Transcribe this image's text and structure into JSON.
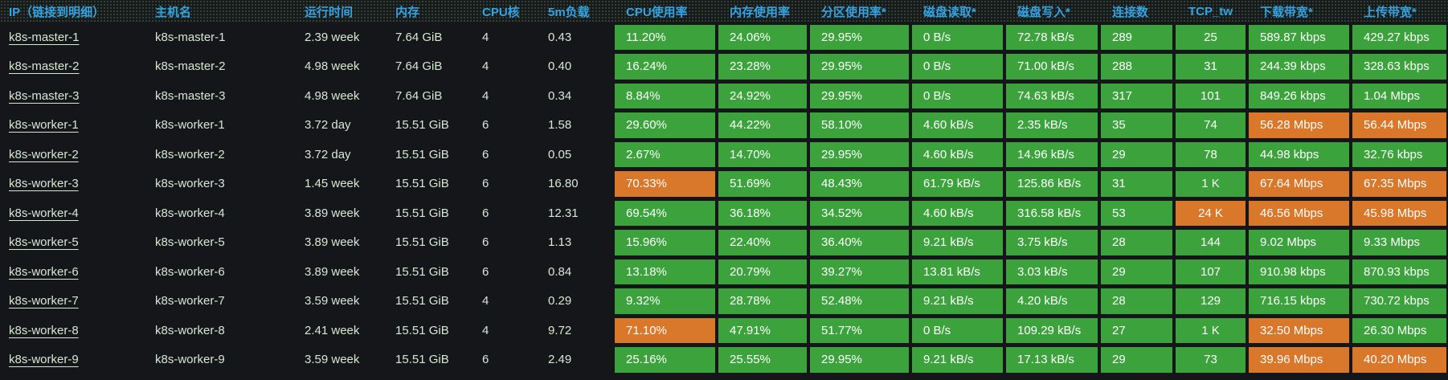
{
  "colors": {
    "green": "#3ca33c",
    "orange": "#d9772a",
    "header_text": "#35a2e2",
    "body_text": "#d7e8d4"
  },
  "table": {
    "columns": [
      {
        "key": "ip",
        "label": "IP（链接到明细）"
      },
      {
        "key": "hostname",
        "label": "主机名"
      },
      {
        "key": "uptime",
        "label": "运行时间"
      },
      {
        "key": "memory",
        "label": "内存"
      },
      {
        "key": "cpu_cores",
        "label": "CPU核"
      },
      {
        "key": "load_5m",
        "label": "5m负载"
      },
      {
        "key": "cpu_usage",
        "label": "CPU使用率"
      },
      {
        "key": "mem_usage",
        "label": "内存使用率"
      },
      {
        "key": "partition_usage",
        "label": "分区使用率*"
      },
      {
        "key": "disk_read",
        "label": "磁盘读取*"
      },
      {
        "key": "disk_write",
        "label": "磁盘写入*"
      },
      {
        "key": "connections",
        "label": "连接数"
      },
      {
        "key": "tcp_tw",
        "label": "TCP_tw"
      },
      {
        "key": "download_bw",
        "label": "下载带宽*"
      },
      {
        "key": "upload_bw",
        "label": "上传带宽*"
      }
    ],
    "rows": [
      {
        "ip": "k8s-master-1",
        "hostname": "k8s-master-1",
        "uptime": "2.39 week",
        "memory": "7.64 GiB",
        "cpu_cores": "4",
        "load_5m": "0.43",
        "cpu_usage": {
          "v": "11.20%",
          "level": "green"
        },
        "mem_usage": {
          "v": "24.06%",
          "level": "green"
        },
        "partition_usage": {
          "v": "29.95%",
          "level": "green"
        },
        "disk_read": {
          "v": "0 B/s",
          "level": "green"
        },
        "disk_write": {
          "v": "72.78 kB/s",
          "level": "green"
        },
        "connections": {
          "v": "289",
          "level": "green"
        },
        "tcp_tw": {
          "v": "25",
          "level": "green"
        },
        "download_bw": {
          "v": "589.87 kbps",
          "level": "green"
        },
        "upload_bw": {
          "v": "429.27 kbps",
          "level": "green"
        }
      },
      {
        "ip": "k8s-master-2",
        "hostname": "k8s-master-2",
        "uptime": "4.98 week",
        "memory": "7.64 GiB",
        "cpu_cores": "4",
        "load_5m": "0.40",
        "cpu_usage": {
          "v": "16.24%",
          "level": "green"
        },
        "mem_usage": {
          "v": "23.28%",
          "level": "green"
        },
        "partition_usage": {
          "v": "29.95%",
          "level": "green"
        },
        "disk_read": {
          "v": "0 B/s",
          "level": "green"
        },
        "disk_write": {
          "v": "71.00 kB/s",
          "level": "green"
        },
        "connections": {
          "v": "288",
          "level": "green"
        },
        "tcp_tw": {
          "v": "31",
          "level": "green"
        },
        "download_bw": {
          "v": "244.39 kbps",
          "level": "green"
        },
        "upload_bw": {
          "v": "328.63 kbps",
          "level": "green"
        }
      },
      {
        "ip": "k8s-master-3",
        "hostname": "k8s-master-3",
        "uptime": "4.98 week",
        "memory": "7.64 GiB",
        "cpu_cores": "4",
        "load_5m": "0.34",
        "cpu_usage": {
          "v": "8.84%",
          "level": "green"
        },
        "mem_usage": {
          "v": "24.92%",
          "level": "green"
        },
        "partition_usage": {
          "v": "29.95%",
          "level": "green"
        },
        "disk_read": {
          "v": "0 B/s",
          "level": "green"
        },
        "disk_write": {
          "v": "74.63 kB/s",
          "level": "green"
        },
        "connections": {
          "v": "317",
          "level": "green"
        },
        "tcp_tw": {
          "v": "101",
          "level": "green"
        },
        "download_bw": {
          "v": "849.26 kbps",
          "level": "green"
        },
        "upload_bw": {
          "v": "1.04 Mbps",
          "level": "green"
        }
      },
      {
        "ip": "k8s-worker-1",
        "hostname": "k8s-worker-1",
        "uptime": "3.72 day",
        "memory": "15.51 GiB",
        "cpu_cores": "6",
        "load_5m": "1.58",
        "cpu_usage": {
          "v": "29.60%",
          "level": "green"
        },
        "mem_usage": {
          "v": "44.22%",
          "level": "green"
        },
        "partition_usage": {
          "v": "58.10%",
          "level": "green"
        },
        "disk_read": {
          "v": "4.60 kB/s",
          "level": "green"
        },
        "disk_write": {
          "v": "2.35 kB/s",
          "level": "green"
        },
        "connections": {
          "v": "35",
          "level": "green"
        },
        "tcp_tw": {
          "v": "74",
          "level": "green"
        },
        "download_bw": {
          "v": "56.28 Mbps",
          "level": "orange"
        },
        "upload_bw": {
          "v": "56.44 Mbps",
          "level": "orange"
        }
      },
      {
        "ip": "k8s-worker-2",
        "hostname": "k8s-worker-2",
        "uptime": "3.72 day",
        "memory": "15.51 GiB",
        "cpu_cores": "6",
        "load_5m": "0.05",
        "cpu_usage": {
          "v": "2.67%",
          "level": "green"
        },
        "mem_usage": {
          "v": "14.70%",
          "level": "green"
        },
        "partition_usage": {
          "v": "29.95%",
          "level": "green"
        },
        "disk_read": {
          "v": "4.60 kB/s",
          "level": "green"
        },
        "disk_write": {
          "v": "14.96 kB/s",
          "level": "green"
        },
        "connections": {
          "v": "29",
          "level": "green"
        },
        "tcp_tw": {
          "v": "78",
          "level": "green"
        },
        "download_bw": {
          "v": "44.98 kbps",
          "level": "green"
        },
        "upload_bw": {
          "v": "32.76 kbps",
          "level": "green"
        }
      },
      {
        "ip": "k8s-worker-3",
        "hostname": "k8s-worker-3",
        "uptime": "1.45 week",
        "memory": "15.51 GiB",
        "cpu_cores": "6",
        "load_5m": "16.80",
        "cpu_usage": {
          "v": "70.33%",
          "level": "orange"
        },
        "mem_usage": {
          "v": "51.69%",
          "level": "green"
        },
        "partition_usage": {
          "v": "48.43%",
          "level": "green"
        },
        "disk_read": {
          "v": "61.79 kB/s",
          "level": "green"
        },
        "disk_write": {
          "v": "125.86 kB/s",
          "level": "green"
        },
        "connections": {
          "v": "31",
          "level": "green"
        },
        "tcp_tw": {
          "v": "1 K",
          "level": "green"
        },
        "download_bw": {
          "v": "67.64 Mbps",
          "level": "orange"
        },
        "upload_bw": {
          "v": "67.35 Mbps",
          "level": "orange"
        }
      },
      {
        "ip": "k8s-worker-4",
        "hostname": "k8s-worker-4",
        "uptime": "3.89 week",
        "memory": "15.51 GiB",
        "cpu_cores": "6",
        "load_5m": "12.31",
        "cpu_usage": {
          "v": "69.54%",
          "level": "green"
        },
        "mem_usage": {
          "v": "36.18%",
          "level": "green"
        },
        "partition_usage": {
          "v": "34.52%",
          "level": "green"
        },
        "disk_read": {
          "v": "4.60 kB/s",
          "level": "green"
        },
        "disk_write": {
          "v": "316.58 kB/s",
          "level": "green"
        },
        "connections": {
          "v": "53",
          "level": "green"
        },
        "tcp_tw": {
          "v": "24 K",
          "level": "orange"
        },
        "download_bw": {
          "v": "46.56 Mbps",
          "level": "orange"
        },
        "upload_bw": {
          "v": "45.98 Mbps",
          "level": "orange"
        }
      },
      {
        "ip": "k8s-worker-5",
        "hostname": "k8s-worker-5",
        "uptime": "3.89 week",
        "memory": "15.51 GiB",
        "cpu_cores": "6",
        "load_5m": "1.13",
        "cpu_usage": {
          "v": "15.96%",
          "level": "green"
        },
        "mem_usage": {
          "v": "22.40%",
          "level": "green"
        },
        "partition_usage": {
          "v": "36.40%",
          "level": "green"
        },
        "disk_read": {
          "v": "9.21 kB/s",
          "level": "green"
        },
        "disk_write": {
          "v": "3.75 kB/s",
          "level": "green"
        },
        "connections": {
          "v": "28",
          "level": "green"
        },
        "tcp_tw": {
          "v": "144",
          "level": "green"
        },
        "download_bw": {
          "v": "9.02 Mbps",
          "level": "green"
        },
        "upload_bw": {
          "v": "9.33 Mbps",
          "level": "green"
        }
      },
      {
        "ip": "k8s-worker-6",
        "hostname": "k8s-worker-6",
        "uptime": "3.89 week",
        "memory": "15.51 GiB",
        "cpu_cores": "6",
        "load_5m": "0.84",
        "cpu_usage": {
          "v": "13.18%",
          "level": "green"
        },
        "mem_usage": {
          "v": "20.79%",
          "level": "green"
        },
        "partition_usage": {
          "v": "39.27%",
          "level": "green"
        },
        "disk_read": {
          "v": "13.81 kB/s",
          "level": "green"
        },
        "disk_write": {
          "v": "3.03 kB/s",
          "level": "green"
        },
        "connections": {
          "v": "29",
          "level": "green"
        },
        "tcp_tw": {
          "v": "107",
          "level": "green"
        },
        "download_bw": {
          "v": "910.98 kbps",
          "level": "green"
        },
        "upload_bw": {
          "v": "870.93 kbps",
          "level": "green"
        }
      },
      {
        "ip": "k8s-worker-7",
        "hostname": "k8s-worker-7",
        "uptime": "3.59 week",
        "memory": "15.51 GiB",
        "cpu_cores": "4",
        "load_5m": "0.29",
        "cpu_usage": {
          "v": "9.32%",
          "level": "green"
        },
        "mem_usage": {
          "v": "28.78%",
          "level": "green"
        },
        "partition_usage": {
          "v": "52.48%",
          "level": "green"
        },
        "disk_read": {
          "v": "9.21 kB/s",
          "level": "green"
        },
        "disk_write": {
          "v": "4.20 kB/s",
          "level": "green"
        },
        "connections": {
          "v": "28",
          "level": "green"
        },
        "tcp_tw": {
          "v": "129",
          "level": "green"
        },
        "download_bw": {
          "v": "716.15 kbps",
          "level": "green"
        },
        "upload_bw": {
          "v": "730.72 kbps",
          "level": "green"
        }
      },
      {
        "ip": "k8s-worker-8",
        "hostname": "k8s-worker-8",
        "uptime": "2.41 week",
        "memory": "15.51 GiB",
        "cpu_cores": "4",
        "load_5m": "9.72",
        "cpu_usage": {
          "v": "71.10%",
          "level": "orange"
        },
        "mem_usage": {
          "v": "47.91%",
          "level": "green"
        },
        "partition_usage": {
          "v": "51.77%",
          "level": "green"
        },
        "disk_read": {
          "v": "0 B/s",
          "level": "green"
        },
        "disk_write": {
          "v": "109.29 kB/s",
          "level": "green"
        },
        "connections": {
          "v": "27",
          "level": "green"
        },
        "tcp_tw": {
          "v": "1 K",
          "level": "green"
        },
        "download_bw": {
          "v": "32.50 Mbps",
          "level": "orange"
        },
        "upload_bw": {
          "v": "26.30 Mbps",
          "level": "green"
        }
      },
      {
        "ip": "k8s-worker-9",
        "hostname": "k8s-worker-9",
        "uptime": "3.59 week",
        "memory": "15.51 GiB",
        "cpu_cores": "6",
        "load_5m": "2.49",
        "cpu_usage": {
          "v": "25.16%",
          "level": "green"
        },
        "mem_usage": {
          "v": "25.55%",
          "level": "green"
        },
        "partition_usage": {
          "v": "29.95%",
          "level": "green"
        },
        "disk_read": {
          "v": "9.21 kB/s",
          "level": "green"
        },
        "disk_write": {
          "v": "17.13 kB/s",
          "level": "green"
        },
        "connections": {
          "v": "29",
          "level": "green"
        },
        "tcp_tw": {
          "v": "73",
          "level": "green"
        },
        "download_bw": {
          "v": "39.96 Mbps",
          "level": "orange"
        },
        "upload_bw": {
          "v": "40.20 Mbps",
          "level": "orange"
        }
      }
    ]
  }
}
